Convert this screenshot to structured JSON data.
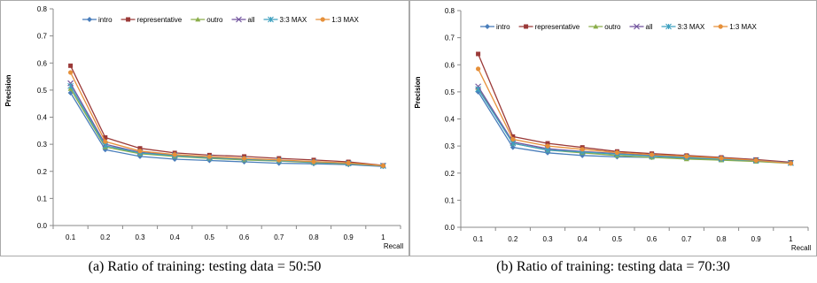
{
  "colors": {
    "intro": "#4a7ebb",
    "representative": "#9b3a38",
    "outro": "#8bae4a",
    "all": "#7558a0",
    "max33": "#3ea0bf",
    "max13": "#e6903a",
    "axis": "#888888",
    "frame": "#aaaaaa"
  },
  "chart_data": [
    {
      "type": "line",
      "caption": "(a) Ratio of training: testing data = 50:50",
      "xlabel": "Recall",
      "ylabel": "Precision",
      "ylim": [
        0.0,
        0.8
      ],
      "ytick_labels": [
        "0.0",
        "0.1",
        "0.2",
        "0.3",
        "0.4",
        "0.5",
        "0.6",
        "0.7",
        "0.8"
      ],
      "x": [
        "0.1",
        "0.2",
        "0.3",
        "0.4",
        "0.5",
        "0.6",
        "0.7",
        "0.8",
        "0.9",
        "1"
      ],
      "grid": false,
      "legend": "top",
      "series": [
        {
          "name": "intro",
          "color": "#4a7ebb",
          "marker": "diamond",
          "values": [
            0.49,
            0.28,
            0.255,
            0.245,
            0.24,
            0.235,
            0.23,
            0.228,
            0.225,
            0.218
          ]
        },
        {
          "name": "representative",
          "color": "#9b3a38",
          "marker": "square",
          "values": [
            0.59,
            0.325,
            0.285,
            0.268,
            0.26,
            0.255,
            0.248,
            0.242,
            0.235,
            0.222
          ]
        },
        {
          "name": "outro",
          "color": "#8bae4a",
          "marker": "triangle",
          "values": [
            0.505,
            0.29,
            0.265,
            0.255,
            0.248,
            0.242,
            0.238,
            0.232,
            0.228,
            0.22
          ]
        },
        {
          "name": "all",
          "color": "#7558a0",
          "marker": "x",
          "values": [
            0.525,
            0.3,
            0.27,
            0.26,
            0.252,
            0.246,
            0.24,
            0.235,
            0.23,
            0.221
          ]
        },
        {
          "name": "3:3 MAX",
          "color": "#3ea0bf",
          "marker": "star",
          "values": [
            0.515,
            0.295,
            0.268,
            0.258,
            0.25,
            0.245,
            0.24,
            0.234,
            0.229,
            0.22
          ]
        },
        {
          "name": "1:3 MAX",
          "color": "#e6903a",
          "marker": "circle",
          "values": [
            0.565,
            0.31,
            0.275,
            0.262,
            0.254,
            0.248,
            0.242,
            0.236,
            0.231,
            0.221
          ]
        }
      ]
    },
    {
      "type": "line",
      "caption": "(b) Ratio of training: testing data = 70:30",
      "xlabel": "Recall",
      "ylabel": "Precision",
      "ylim": [
        0.0,
        0.8
      ],
      "ytick_labels": [
        "0.0",
        "0.1",
        "0.2",
        "0.3",
        "0.4",
        "0.5",
        "0.6",
        "0.7",
        "0.8"
      ],
      "x": [
        "0.1",
        "0.2",
        "0.3",
        "0.4",
        "0.5",
        "0.6",
        "0.7",
        "0.8",
        "0.9",
        "1"
      ],
      "grid": false,
      "legend": "top",
      "series": [
        {
          "name": "intro",
          "color": "#4a7ebb",
          "marker": "diamond",
          "values": [
            0.5,
            0.295,
            0.275,
            0.265,
            0.26,
            0.258,
            0.255,
            0.25,
            0.245,
            0.237
          ]
        },
        {
          "name": "representative",
          "color": "#9b3a38",
          "marker": "square",
          "values": [
            0.64,
            0.335,
            0.31,
            0.295,
            0.28,
            0.272,
            0.265,
            0.258,
            0.25,
            0.24
          ]
        },
        {
          "name": "outro",
          "color": "#8bae4a",
          "marker": "triangle",
          "values": [
            0.515,
            0.31,
            0.285,
            0.275,
            0.265,
            0.258,
            0.252,
            0.248,
            0.243,
            0.236
          ]
        },
        {
          "name": "all",
          "color": "#7558a0",
          "marker": "x",
          "values": [
            0.52,
            0.315,
            0.29,
            0.28,
            0.272,
            0.265,
            0.26,
            0.254,
            0.248,
            0.238
          ]
        },
        {
          "name": "3:3 MAX",
          "color": "#3ea0bf",
          "marker": "star",
          "values": [
            0.51,
            0.31,
            0.285,
            0.278,
            0.27,
            0.263,
            0.258,
            0.252,
            0.246,
            0.237
          ]
        },
        {
          "name": "1:3 MAX",
          "color": "#e6903a",
          "marker": "circle",
          "values": [
            0.585,
            0.325,
            0.3,
            0.288,
            0.276,
            0.268,
            0.262,
            0.255,
            0.247,
            0.236
          ]
        }
      ]
    }
  ]
}
